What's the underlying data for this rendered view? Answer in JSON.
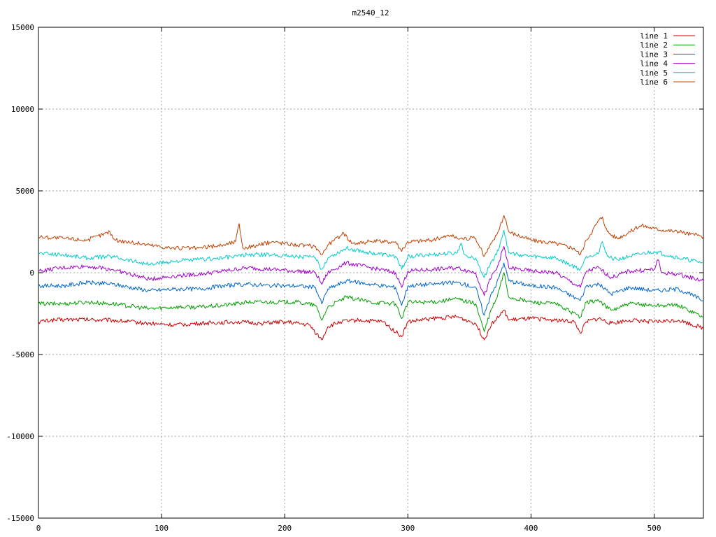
{
  "chart_data": {
    "type": "line",
    "title": "m2540_12",
    "xlabel": "",
    "ylabel": "",
    "xlim": [
      0,
      540
    ],
    "ylim": [
      -15000,
      15000
    ],
    "x_ticks": [
      0,
      100,
      200,
      300,
      400,
      500
    ],
    "y_ticks": [
      -15000,
      -10000,
      -5000,
      0,
      5000,
      10000,
      15000
    ],
    "grid": true,
    "legend_position": "top-right",
    "series": [
      {
        "name": "line 1",
        "color": "#cc0000",
        "points": [
          [
            0,
            -3000
          ],
          [
            10,
            -2900
          ],
          [
            30,
            -2850
          ],
          [
            60,
            -2900
          ],
          [
            90,
            -3100
          ],
          [
            110,
            -3200
          ],
          [
            130,
            -3100
          ],
          [
            160,
            -3000
          ],
          [
            180,
            -3100
          ],
          [
            200,
            -3000
          ],
          [
            220,
            -3200
          ],
          [
            230,
            -4100
          ],
          [
            235,
            -3300
          ],
          [
            245,
            -3000
          ],
          [
            260,
            -2900
          ],
          [
            280,
            -3000
          ],
          [
            295,
            -3900
          ],
          [
            300,
            -3000
          ],
          [
            320,
            -2800
          ],
          [
            340,
            -2700
          ],
          [
            355,
            -3100
          ],
          [
            362,
            -4100
          ],
          [
            368,
            -3100
          ],
          [
            375,
            -2600
          ],
          [
            378,
            -2300
          ],
          [
            382,
            -2900
          ],
          [
            400,
            -2800
          ],
          [
            420,
            -2900
          ],
          [
            435,
            -3000
          ],
          [
            440,
            -3700
          ],
          [
            445,
            -3000
          ],
          [
            455,
            -2800
          ],
          [
            465,
            -3100
          ],
          [
            480,
            -2900
          ],
          [
            500,
            -3000
          ],
          [
            520,
            -2900
          ],
          [
            540,
            -3400
          ]
        ]
      },
      {
        "name": "line 2",
        "color": "#00a000",
        "points": [
          [
            0,
            -1900
          ],
          [
            20,
            -1900
          ],
          [
            40,
            -1800
          ],
          [
            60,
            -1900
          ],
          [
            90,
            -2200
          ],
          [
            110,
            -2100
          ],
          [
            130,
            -2100
          ],
          [
            150,
            -2000
          ],
          [
            170,
            -1800
          ],
          [
            190,
            -1800
          ],
          [
            210,
            -1800
          ],
          [
            225,
            -2000
          ],
          [
            230,
            -2900
          ],
          [
            235,
            -2100
          ],
          [
            250,
            -1500
          ],
          [
            270,
            -1800
          ],
          [
            290,
            -1900
          ],
          [
            295,
            -2800
          ],
          [
            300,
            -1800
          ],
          [
            320,
            -1800
          ],
          [
            340,
            -1600
          ],
          [
            355,
            -1900
          ],
          [
            362,
            -3600
          ],
          [
            368,
            -2200
          ],
          [
            372,
            -1600
          ],
          [
            378,
            0
          ],
          [
            382,
            -1500
          ],
          [
            400,
            -1800
          ],
          [
            420,
            -1900
          ],
          [
            440,
            -2700
          ],
          [
            445,
            -1800
          ],
          [
            455,
            -1700
          ],
          [
            465,
            -2300
          ],
          [
            480,
            -1900
          ],
          [
            500,
            -2000
          ],
          [
            520,
            -2000
          ],
          [
            540,
            -2700
          ]
        ]
      },
      {
        "name": "line 3",
        "color": "#0066cc",
        "points": [
          [
            0,
            -800
          ],
          [
            20,
            -800
          ],
          [
            40,
            -600
          ],
          [
            60,
            -700
          ],
          [
            90,
            -1100
          ],
          [
            110,
            -1000
          ],
          [
            130,
            -1000
          ],
          [
            150,
            -800
          ],
          [
            170,
            -700
          ],
          [
            190,
            -800
          ],
          [
            210,
            -800
          ],
          [
            225,
            -900
          ],
          [
            230,
            -1900
          ],
          [
            235,
            -1000
          ],
          [
            250,
            -500
          ],
          [
            270,
            -700
          ],
          [
            290,
            -900
          ],
          [
            295,
            -2000
          ],
          [
            300,
            -800
          ],
          [
            320,
            -700
          ],
          [
            340,
            -600
          ],
          [
            355,
            -900
          ],
          [
            362,
            -2600
          ],
          [
            368,
            -1200
          ],
          [
            372,
            -700
          ],
          [
            378,
            600
          ],
          [
            382,
            -500
          ],
          [
            400,
            -800
          ],
          [
            420,
            -900
          ],
          [
            440,
            -1700
          ],
          [
            445,
            -800
          ],
          [
            455,
            -700
          ],
          [
            465,
            -1300
          ],
          [
            480,
            -900
          ],
          [
            500,
            -1100
          ],
          [
            520,
            -1000
          ],
          [
            540,
            -1700
          ]
        ]
      },
      {
        "name": "line 4",
        "color": "#a000cc",
        "points": [
          [
            0,
            100
          ],
          [
            20,
            300
          ],
          [
            40,
            400
          ],
          [
            60,
            200
          ],
          [
            90,
            -400
          ],
          [
            110,
            -200
          ],
          [
            130,
            -100
          ],
          [
            150,
            100
          ],
          [
            170,
            300
          ],
          [
            190,
            200
          ],
          [
            210,
            100
          ],
          [
            225,
            0
          ],
          [
            230,
            -700
          ],
          [
            235,
            0
          ],
          [
            250,
            600
          ],
          [
            270,
            300
          ],
          [
            290,
            0
          ],
          [
            295,
            -900
          ],
          [
            300,
            100
          ],
          [
            320,
            200
          ],
          [
            340,
            300
          ],
          [
            355,
            0
          ],
          [
            362,
            -1400
          ],
          [
            368,
            -200
          ],
          [
            372,
            200
          ],
          [
            378,
            1600
          ],
          [
            382,
            300
          ],
          [
            400,
            100
          ],
          [
            420,
            0
          ],
          [
            440,
            -900
          ],
          [
            445,
            100
          ],
          [
            455,
            300
          ],
          [
            465,
            -300
          ],
          [
            480,
            100
          ],
          [
            500,
            200
          ],
          [
            503,
            800
          ],
          [
            506,
            0
          ],
          [
            520,
            -100
          ],
          [
            540,
            -500
          ]
        ]
      },
      {
        "name": "line 5",
        "color": "#00cccc",
        "points": [
          [
            0,
            1200
          ],
          [
            20,
            1100
          ],
          [
            40,
            900
          ],
          [
            60,
            1000
          ],
          [
            90,
            500
          ],
          [
            110,
            700
          ],
          [
            130,
            800
          ],
          [
            150,
            900
          ],
          [
            170,
            1100
          ],
          [
            190,
            1100
          ],
          [
            210,
            1000
          ],
          [
            225,
            900
          ],
          [
            230,
            200
          ],
          [
            235,
            900
          ],
          [
            250,
            1500
          ],
          [
            270,
            1200
          ],
          [
            290,
            1000
          ],
          [
            295,
            200
          ],
          [
            300,
            1000
          ],
          [
            320,
            1100
          ],
          [
            340,
            1200
          ],
          [
            343,
            1800
          ],
          [
            346,
            1100
          ],
          [
            355,
            900
          ],
          [
            362,
            -300
          ],
          [
            368,
            700
          ],
          [
            372,
            1100
          ],
          [
            378,
            2600
          ],
          [
            382,
            1200
          ],
          [
            400,
            1000
          ],
          [
            420,
            900
          ],
          [
            440,
            200
          ],
          [
            445,
            1000
          ],
          [
            455,
            1200
          ],
          [
            458,
            1900
          ],
          [
            462,
            1000
          ],
          [
            470,
            800
          ],
          [
            480,
            1000
          ],
          [
            500,
            1300
          ],
          [
            520,
            900
          ],
          [
            540,
            600
          ]
        ]
      },
      {
        "name": "line 6",
        "color": "#c04000",
        "points": [
          [
            0,
            2200
          ],
          [
            20,
            2100
          ],
          [
            40,
            2000
          ],
          [
            58,
            2500
          ],
          [
            62,
            2000
          ],
          [
            90,
            1700
          ],
          [
            110,
            1500
          ],
          [
            130,
            1500
          ],
          [
            150,
            1700
          ],
          [
            160,
            1900
          ],
          [
            163,
            3000
          ],
          [
            166,
            1500
          ],
          [
            180,
            1700
          ],
          [
            190,
            1900
          ],
          [
            210,
            1700
          ],
          [
            225,
            1600
          ],
          [
            230,
            1100
          ],
          [
            235,
            1700
          ],
          [
            248,
            2400
          ],
          [
            255,
            1800
          ],
          [
            270,
            1900
          ],
          [
            290,
            1900
          ],
          [
            295,
            1300
          ],
          [
            300,
            1900
          ],
          [
            320,
            2000
          ],
          [
            335,
            2300
          ],
          [
            340,
            2100
          ],
          [
            355,
            2100
          ],
          [
            362,
            1000
          ],
          [
            368,
            1800
          ],
          [
            372,
            2300
          ],
          [
            378,
            3500
          ],
          [
            382,
            2500
          ],
          [
            400,
            2000
          ],
          [
            420,
            1800
          ],
          [
            435,
            1500
          ],
          [
            440,
            1100
          ],
          [
            445,
            2000
          ],
          [
            455,
            3200
          ],
          [
            458,
            3400
          ],
          [
            462,
            2500
          ],
          [
            470,
            2100
          ],
          [
            480,
            2500
          ],
          [
            490,
            2900
          ],
          [
            500,
            2700
          ],
          [
            520,
            2500
          ],
          [
            540,
            2200
          ]
        ]
      }
    ]
  }
}
